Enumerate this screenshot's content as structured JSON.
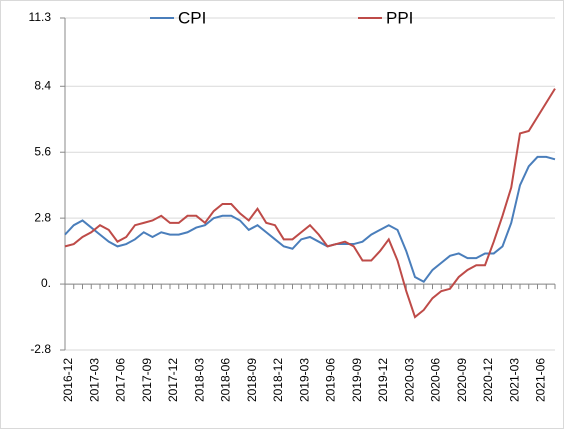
{
  "chart_data": {
    "type": "line",
    "categories": [
      "2016-12",
      null,
      null,
      "2017-03",
      null,
      null,
      "2017-06",
      null,
      null,
      "2017-09",
      null,
      null,
      "2017-12",
      null,
      null,
      "2018-03",
      null,
      null,
      "2018-06",
      null,
      null,
      "2018-09",
      null,
      null,
      "2018-12",
      null,
      null,
      "2019-03",
      null,
      null,
      "2019-06",
      null,
      null,
      "2019-09",
      null,
      null,
      "2019-12",
      null,
      null,
      "2020-03",
      null,
      null,
      "2020-06",
      null,
      null,
      "2020-09",
      null,
      null,
      "2020-12",
      null,
      null,
      "2021-03",
      null,
      null,
      "2021-06",
      null,
      null
    ],
    "series": [
      {
        "name": "CPI",
        "color": "#4a7ebb",
        "values": [
          2.1,
          2.5,
          2.7,
          2.4,
          2.1,
          1.8,
          1.6,
          1.7,
          1.9,
          2.2,
          2.0,
          2.2,
          2.1,
          2.1,
          2.2,
          2.4,
          2.5,
          2.8,
          2.9,
          2.9,
          2.7,
          2.3,
          2.5,
          2.2,
          1.9,
          1.6,
          1.5,
          1.9,
          2.0,
          1.8,
          1.6,
          1.7,
          1.7,
          1.7,
          1.8,
          2.1,
          2.3,
          2.5,
          2.3,
          1.4,
          0.3,
          0.1,
          0.6,
          0.9,
          1.2,
          1.3,
          1.1,
          1.1,
          1.3,
          1.3,
          1.6,
          2.6,
          4.2,
          5.0,
          5.4,
          5.4,
          5.3
        ]
      },
      {
        "name": "PPI",
        "color": "#be4b48",
        "values": [
          1.6,
          1.7,
          2.0,
          2.2,
          2.5,
          2.3,
          1.8,
          2.0,
          2.5,
          2.6,
          2.7,
          2.9,
          2.6,
          2.6,
          2.9,
          2.9,
          2.6,
          3.1,
          3.4,
          3.4,
          3.0,
          2.7,
          3.2,
          2.6,
          2.5,
          1.9,
          1.9,
          2.2,
          2.5,
          2.1,
          1.6,
          1.7,
          1.8,
          1.6,
          1.0,
          1.0,
          1.4,
          1.9,
          1.0,
          -0.3,
          -1.4,
          -1.1,
          -0.6,
          -0.3,
          -0.2,
          0.3,
          0.6,
          0.8,
          0.8,
          1.8,
          2.9,
          4.1,
          6.4,
          6.5,
          7.1,
          7.7,
          8.3
        ]
      }
    ],
    "ylim": [
      -2.8,
      11.3
    ],
    "yticks": [
      -2.8,
      {
        "value": 0,
        "label": "0."
      },
      2.8,
      5.6,
      8.4,
      11.3
    ],
    "grid": true,
    "legend": "top"
  }
}
